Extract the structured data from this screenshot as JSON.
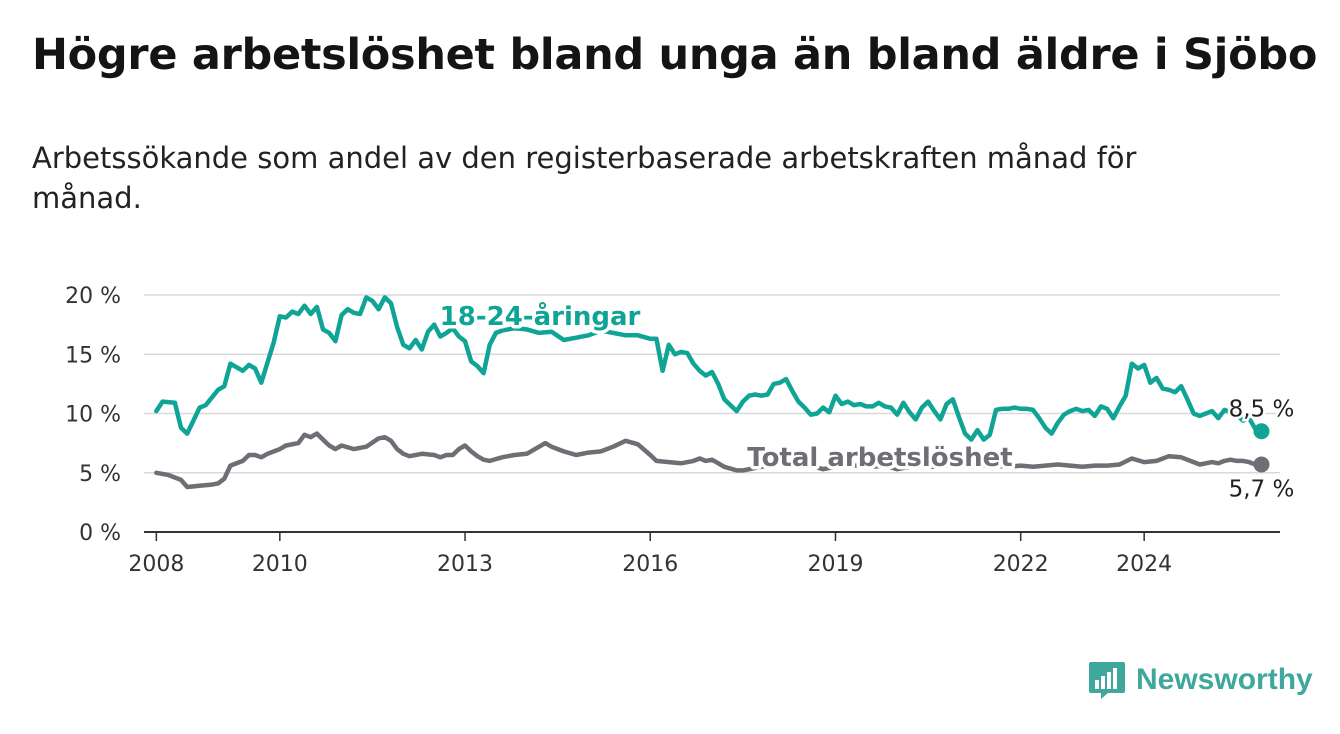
{
  "title": "Högre arbetslöshet bland unga än bland äldre i Sjöbo",
  "subtitle": "Arbetssökande som andel av den registerbaserade arbetskraften månad för månad.",
  "brand": {
    "name": "Newsworthy",
    "icon": "bar-chart-icon"
  },
  "chart_data": {
    "type": "line",
    "title": "Högre arbetslöshet bland unga än bland äldre i Sjöbo",
    "xlabel": "",
    "ylabel": "",
    "xlim": [
      2007.8,
      2026.2
    ],
    "ylim": [
      0,
      20
    ],
    "y_ticks": [
      0,
      5,
      10,
      15,
      20
    ],
    "y_tick_labels": [
      "0 %",
      "5 %",
      "10 %",
      "15 %",
      "20 %"
    ],
    "x_ticks": [
      2008,
      2010,
      2013,
      2016,
      2019,
      2022,
      2024
    ],
    "x_tick_labels": [
      "2008",
      "2010",
      "2013",
      "2016",
      "2019",
      "2022",
      "2024"
    ],
    "grid": true,
    "colors": {
      "youth": "#0fa495",
      "total": "#6f6e75",
      "grid": "#d9d9d9",
      "axis": "#333333"
    },
    "series": [
      {
        "name": "18-24-åringar",
        "end_label": "8,5 %",
        "points": [
          [
            2008.0,
            10.2
          ],
          [
            2008.1,
            11.0
          ],
          [
            2008.3,
            10.9
          ],
          [
            2008.4,
            8.8
          ],
          [
            2008.5,
            8.3
          ],
          [
            2008.7,
            10.5
          ],
          [
            2008.8,
            10.7
          ],
          [
            2009.0,
            12.0
          ],
          [
            2009.1,
            12.3
          ],
          [
            2009.2,
            14.2
          ],
          [
            2009.4,
            13.6
          ],
          [
            2009.5,
            14.1
          ],
          [
            2009.6,
            13.8
          ],
          [
            2009.7,
            12.6
          ],
          [
            2009.8,
            14.3
          ],
          [
            2009.9,
            16.0
          ],
          [
            2010.0,
            18.2
          ],
          [
            2010.1,
            18.1
          ],
          [
            2010.2,
            18.6
          ],
          [
            2010.3,
            18.4
          ],
          [
            2010.4,
            19.1
          ],
          [
            2010.5,
            18.4
          ],
          [
            2010.6,
            19.0
          ],
          [
            2010.7,
            17.1
          ],
          [
            2010.8,
            16.8
          ],
          [
            2010.9,
            16.1
          ],
          [
            2011.0,
            18.3
          ],
          [
            2011.1,
            18.8
          ],
          [
            2011.2,
            18.5
          ],
          [
            2011.3,
            18.4
          ],
          [
            2011.4,
            19.8
          ],
          [
            2011.5,
            19.5
          ],
          [
            2011.6,
            18.8
          ],
          [
            2011.7,
            19.8
          ],
          [
            2011.8,
            19.3
          ],
          [
            2011.9,
            17.3
          ],
          [
            2012.0,
            15.8
          ],
          [
            2012.1,
            15.5
          ],
          [
            2012.2,
            16.2
          ],
          [
            2012.3,
            15.4
          ],
          [
            2012.4,
            16.9
          ],
          [
            2012.5,
            17.5
          ],
          [
            2012.6,
            16.5
          ],
          [
            2012.7,
            16.8
          ],
          [
            2012.8,
            17.2
          ],
          [
            2012.9,
            16.5
          ],
          [
            2013.0,
            16.1
          ],
          [
            2013.1,
            14.4
          ],
          [
            2013.2,
            14.0
          ],
          [
            2013.3,
            13.4
          ],
          [
            2013.4,
            15.8
          ],
          [
            2013.5,
            16.8
          ],
          [
            2013.6,
            17.0
          ],
          [
            2013.8,
            17.2
          ],
          [
            2014.0,
            17.1
          ],
          [
            2014.2,
            16.8
          ],
          [
            2014.4,
            16.9
          ],
          [
            2014.6,
            16.2
          ],
          [
            2014.8,
            16.4
          ],
          [
            2015.0,
            16.6
          ],
          [
            2015.2,
            17.0
          ],
          [
            2015.4,
            16.8
          ],
          [
            2015.6,
            16.6
          ],
          [
            2015.8,
            16.6
          ],
          [
            2016.0,
            16.3
          ],
          [
            2016.1,
            16.3
          ],
          [
            2016.2,
            13.6
          ],
          [
            2016.3,
            15.8
          ],
          [
            2016.4,
            15.0
          ],
          [
            2016.5,
            15.2
          ],
          [
            2016.6,
            15.1
          ],
          [
            2016.7,
            14.2
          ],
          [
            2016.8,
            13.6
          ],
          [
            2016.9,
            13.2
          ],
          [
            2017.0,
            13.5
          ],
          [
            2017.1,
            12.5
          ],
          [
            2017.2,
            11.2
          ],
          [
            2017.3,
            10.7
          ],
          [
            2017.4,
            10.2
          ],
          [
            2017.5,
            11.0
          ],
          [
            2017.6,
            11.5
          ],
          [
            2017.7,
            11.6
          ],
          [
            2017.8,
            11.5
          ],
          [
            2017.9,
            11.6
          ],
          [
            2018.0,
            12.5
          ],
          [
            2018.1,
            12.6
          ],
          [
            2018.2,
            12.9
          ],
          [
            2018.3,
            11.9
          ],
          [
            2018.4,
            11.0
          ],
          [
            2018.5,
            10.5
          ],
          [
            2018.6,
            9.9
          ],
          [
            2018.7,
            10.0
          ],
          [
            2018.8,
            10.5
          ],
          [
            2018.9,
            10.1
          ],
          [
            2019.0,
            11.5
          ],
          [
            2019.1,
            10.8
          ],
          [
            2019.2,
            11.0
          ],
          [
            2019.3,
            10.7
          ],
          [
            2019.4,
            10.8
          ],
          [
            2019.5,
            10.6
          ],
          [
            2019.6,
            10.6
          ],
          [
            2019.7,
            10.9
          ],
          [
            2019.8,
            10.6
          ],
          [
            2019.9,
            10.5
          ],
          [
            2020.0,
            9.9
          ],
          [
            2020.1,
            10.9
          ],
          [
            2020.2,
            10.1
          ],
          [
            2020.3,
            9.5
          ],
          [
            2020.4,
            10.5
          ],
          [
            2020.5,
            11.0
          ],
          [
            2020.6,
            10.2
          ],
          [
            2020.7,
            9.5
          ],
          [
            2020.8,
            10.8
          ],
          [
            2020.9,
            11.2
          ],
          [
            2021.0,
            9.7
          ],
          [
            2021.1,
            8.3
          ],
          [
            2021.2,
            7.8
          ],
          [
            2021.3,
            8.6
          ],
          [
            2021.4,
            7.8
          ],
          [
            2021.5,
            8.2
          ],
          [
            2021.6,
            10.3
          ],
          [
            2021.7,
            10.4
          ],
          [
            2021.8,
            10.4
          ],
          [
            2021.9,
            10.5
          ],
          [
            2022.0,
            10.4
          ],
          [
            2022.1,
            10.4
          ],
          [
            2022.2,
            10.3
          ],
          [
            2022.3,
            9.6
          ],
          [
            2022.4,
            8.8
          ],
          [
            2022.5,
            8.3
          ],
          [
            2022.6,
            9.2
          ],
          [
            2022.7,
            9.9
          ],
          [
            2022.8,
            10.2
          ],
          [
            2022.9,
            10.4
          ],
          [
            2023.0,
            10.2
          ],
          [
            2023.1,
            10.3
          ],
          [
            2023.2,
            9.8
          ],
          [
            2023.3,
            10.6
          ],
          [
            2023.4,
            10.4
          ],
          [
            2023.5,
            9.6
          ],
          [
            2023.6,
            10.6
          ],
          [
            2023.7,
            11.5
          ],
          [
            2023.8,
            14.2
          ],
          [
            2023.9,
            13.8
          ],
          [
            2024.0,
            14.1
          ],
          [
            2024.1,
            12.6
          ],
          [
            2024.2,
            13.0
          ],
          [
            2024.3,
            12.1
          ],
          [
            2024.4,
            12.0
          ],
          [
            2024.5,
            11.8
          ],
          [
            2024.6,
            12.3
          ],
          [
            2024.7,
            11.2
          ],
          [
            2024.8,
            10.0
          ],
          [
            2024.9,
            9.8
          ],
          [
            2025.0,
            10.0
          ],
          [
            2025.1,
            10.2
          ],
          [
            2025.2,
            9.6
          ],
          [
            2025.3,
            10.3
          ],
          [
            2025.4,
            10.1
          ],
          [
            2025.5,
            9.9
          ],
          [
            2025.6,
            9.4
          ],
          [
            2025.7,
            9.6
          ],
          [
            2025.8,
            8.7
          ],
          [
            2025.9,
            8.5
          ]
        ]
      },
      {
        "name": "Total arbetslöshet",
        "end_label": "5,7 %",
        "points": [
          [
            2008.0,
            5.0
          ],
          [
            2008.2,
            4.8
          ],
          [
            2008.4,
            4.4
          ],
          [
            2008.5,
            3.8
          ],
          [
            2008.7,
            3.9
          ],
          [
            2008.9,
            4.0
          ],
          [
            2009.0,
            4.1
          ],
          [
            2009.1,
            4.5
          ],
          [
            2009.2,
            5.6
          ],
          [
            2009.4,
            6.0
          ],
          [
            2009.5,
            6.5
          ],
          [
            2009.6,
            6.5
          ],
          [
            2009.7,
            6.3
          ],
          [
            2009.8,
            6.6
          ],
          [
            2010.0,
            7.0
          ],
          [
            2010.1,
            7.3
          ],
          [
            2010.3,
            7.5
          ],
          [
            2010.4,
            8.2
          ],
          [
            2010.5,
            8.0
          ],
          [
            2010.6,
            8.3
          ],
          [
            2010.7,
            7.8
          ],
          [
            2010.8,
            7.3
          ],
          [
            2010.9,
            7.0
          ],
          [
            2011.0,
            7.3
          ],
          [
            2011.2,
            7.0
          ],
          [
            2011.4,
            7.2
          ],
          [
            2011.6,
            7.9
          ],
          [
            2011.7,
            8.0
          ],
          [
            2011.8,
            7.7
          ],
          [
            2011.9,
            7.0
          ],
          [
            2012.0,
            6.6
          ],
          [
            2012.1,
            6.4
          ],
          [
            2012.3,
            6.6
          ],
          [
            2012.5,
            6.5
          ],
          [
            2012.6,
            6.3
          ],
          [
            2012.7,
            6.5
          ],
          [
            2012.8,
            6.5
          ],
          [
            2012.9,
            7.0
          ],
          [
            2013.0,
            7.3
          ],
          [
            2013.1,
            6.8
          ],
          [
            2013.2,
            6.4
          ],
          [
            2013.3,
            6.1
          ],
          [
            2013.4,
            6.0
          ],
          [
            2013.6,
            6.3
          ],
          [
            2013.8,
            6.5
          ],
          [
            2014.0,
            6.6
          ],
          [
            2014.2,
            7.2
          ],
          [
            2014.3,
            7.5
          ],
          [
            2014.4,
            7.2
          ],
          [
            2014.5,
            7.0
          ],
          [
            2014.6,
            6.8
          ],
          [
            2014.8,
            6.5
          ],
          [
            2015.0,
            6.7
          ],
          [
            2015.2,
            6.8
          ],
          [
            2015.4,
            7.2
          ],
          [
            2015.6,
            7.7
          ],
          [
            2015.8,
            7.4
          ],
          [
            2016.0,
            6.5
          ],
          [
            2016.1,
            6.0
          ],
          [
            2016.3,
            5.9
          ],
          [
            2016.5,
            5.8
          ],
          [
            2016.7,
            6.0
          ],
          [
            2016.8,
            6.2
          ],
          [
            2016.9,
            6.0
          ],
          [
            2017.0,
            6.1
          ],
          [
            2017.2,
            5.5
          ],
          [
            2017.4,
            5.2
          ],
          [
            2017.5,
            5.2
          ],
          [
            2017.7,
            5.4
          ],
          [
            2017.9,
            5.6
          ],
          [
            2018.0,
            5.8
          ],
          [
            2018.1,
            6.1
          ],
          [
            2018.3,
            6.3
          ],
          [
            2018.4,
            6.0
          ],
          [
            2018.6,
            5.6
          ],
          [
            2018.8,
            5.3
          ],
          [
            2019.0,
            5.5
          ],
          [
            2019.2,
            5.6
          ],
          [
            2019.4,
            5.6
          ],
          [
            2019.6,
            5.5
          ],
          [
            2019.8,
            5.6
          ],
          [
            2020.0,
            5.3
          ],
          [
            2020.2,
            5.5
          ],
          [
            2020.4,
            5.6
          ],
          [
            2020.6,
            5.5
          ],
          [
            2020.8,
            5.6
          ],
          [
            2021.0,
            5.6
          ],
          [
            2021.2,
            5.5
          ],
          [
            2021.4,
            5.6
          ],
          [
            2021.6,
            5.6
          ],
          [
            2021.8,
            5.5
          ],
          [
            2022.0,
            5.6
          ],
          [
            2022.2,
            5.5
          ],
          [
            2022.4,
            5.6
          ],
          [
            2022.6,
            5.7
          ],
          [
            2022.8,
            5.6
          ],
          [
            2023.0,
            5.5
          ],
          [
            2023.2,
            5.6
          ],
          [
            2023.4,
            5.6
          ],
          [
            2023.6,
            5.7
          ],
          [
            2023.8,
            6.2
          ],
          [
            2024.0,
            5.9
          ],
          [
            2024.2,
            6.0
          ],
          [
            2024.4,
            6.4
          ],
          [
            2024.6,
            6.3
          ],
          [
            2024.8,
            5.9
          ],
          [
            2024.9,
            5.7
          ],
          [
            2025.0,
            5.8
          ],
          [
            2025.1,
            5.9
          ],
          [
            2025.2,
            5.8
          ],
          [
            2025.3,
            6.0
          ],
          [
            2025.4,
            6.1
          ],
          [
            2025.5,
            6.0
          ],
          [
            2025.6,
            6.0
          ],
          [
            2025.7,
            5.9
          ],
          [
            2025.8,
            5.7
          ],
          [
            2025.9,
            5.7
          ]
        ]
      }
    ]
  }
}
